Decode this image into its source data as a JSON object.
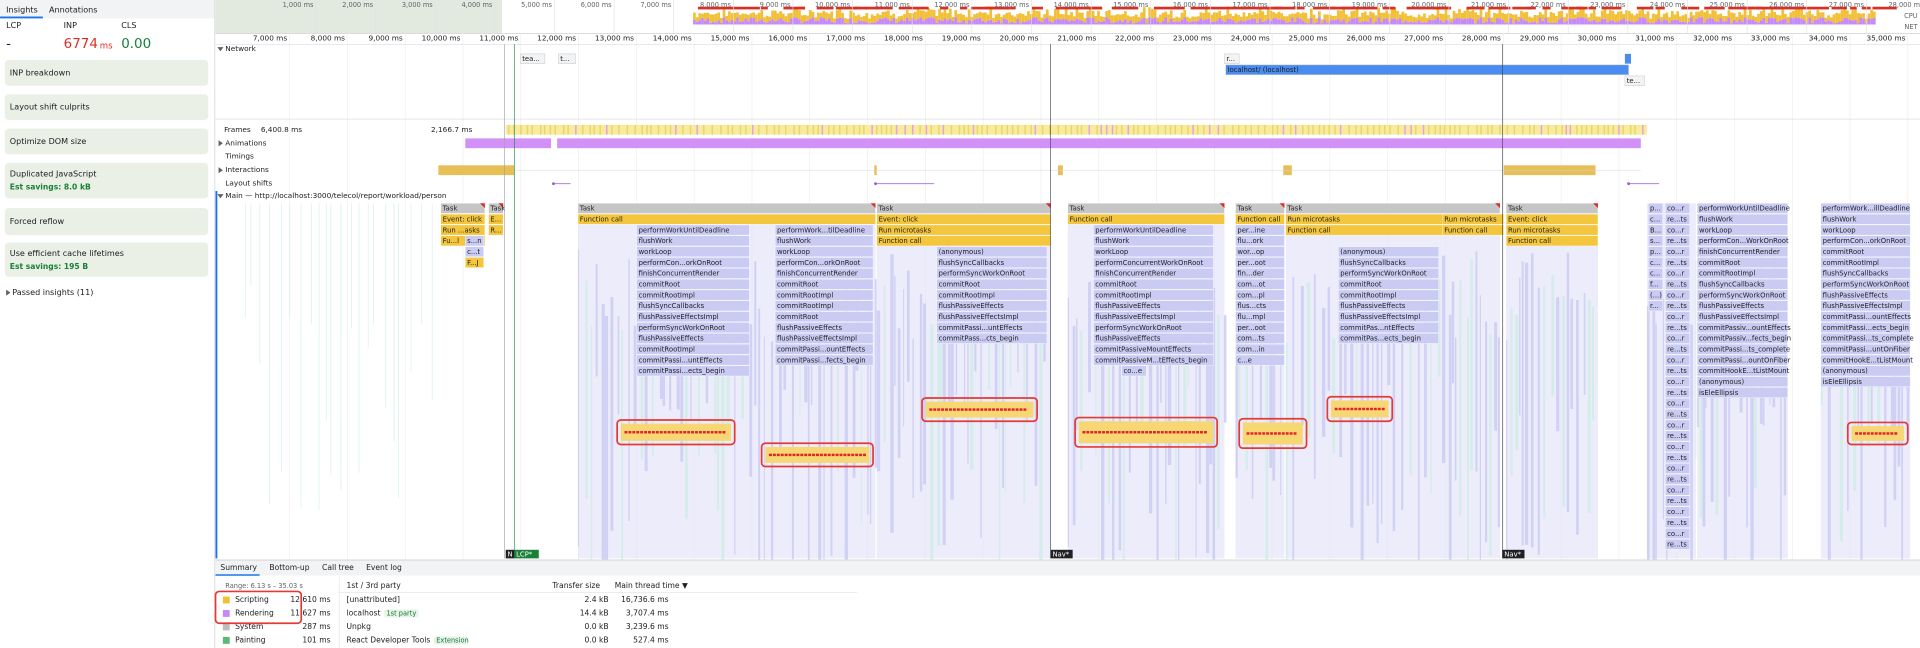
{
  "sidebar": {
    "tabs": [
      "Insights",
      "Annotations"
    ],
    "metrics": [
      {
        "label": "LCP",
        "value": "-"
      },
      {
        "label": "INP",
        "value": "6774",
        "unit": "ms"
      },
      {
        "label": "CLS",
        "value": "0.00"
      }
    ],
    "insights": [
      {
        "title": "INP breakdown"
      },
      {
        "title": "Layout shift culprits"
      },
      {
        "title": "Optimize DOM size"
      },
      {
        "title": "Duplicated JavaScript",
        "savings": "Est savings: 8.0 kB"
      },
      {
        "title": "Forced reflow"
      },
      {
        "title": "Use efficient cache lifetimes",
        "savings": "Est savings: 195 B"
      }
    ],
    "passed": "Passed insights (11)"
  },
  "overview": {
    "cpu": "CPU",
    "net": "NET",
    "ticks": [
      {
        "value": 1000,
        "label": "1,000 ms"
      },
      {
        "value": 2000,
        "label": "2,000 ms"
      },
      {
        "value": 3000,
        "label": "3,000 ms"
      },
      {
        "value": 4000,
        "label": "4,000 ms"
      },
      {
        "value": 5000,
        "label": "5,000 ms"
      },
      {
        "value": 6000,
        "label": "6,000 ms"
      },
      {
        "value": 7000,
        "label": "7,000 ms"
      },
      {
        "value": 8000,
        "label": "8,000 ms"
      },
      {
        "value": 9000,
        "label": "9,000 ms"
      },
      {
        "value": 10000,
        "label": "10,000 ms"
      },
      {
        "value": 11000,
        "label": "11,000 ms"
      },
      {
        "value": 12000,
        "label": "12,000 ms"
      },
      {
        "value": 13000,
        "label": "13,000 ms"
      },
      {
        "value": 14000,
        "label": "14,000 ms"
      },
      {
        "value": 15000,
        "label": "15,000 ms"
      },
      {
        "value": 16000,
        "label": "16,000 ms"
      },
      {
        "value": 17000,
        "label": "17,000 ms"
      },
      {
        "value": 18000,
        "label": "18,000 ms"
      },
      {
        "value": 19000,
        "label": "19,000 ms"
      },
      {
        "value": 20000,
        "label": "20,000 ms"
      },
      {
        "value": 21000,
        "label": "21,000 ms"
      },
      {
        "value": 22000,
        "label": "22,000 ms"
      },
      {
        "value": 23000,
        "label": "23,000 ms"
      },
      {
        "value": 24000,
        "label": "24,000 ms"
      },
      {
        "value": 25000,
        "label": "25,000 ms"
      },
      {
        "value": 26000,
        "label": "26,000 ms"
      },
      {
        "value": 27000,
        "label": "27,000 ms"
      },
      {
        "value": 28000,
        "label": "28,000 ms"
      },
      {
        "value": 29000,
        "label": "29,000 ms"
      },
      {
        "value": 30000,
        "label": "30,000 ms"
      },
      {
        "value": 31000,
        "label": "31,000 ms"
      },
      {
        "value": 32000,
        "label": "32,000 ms"
      },
      {
        "value": 33000,
        "label": "33,000 ms"
      },
      {
        "value": 34000,
        "label": "34,000 ms"
      },
      {
        "value": 35000,
        "label": "35,000 ms"
      }
    ]
  },
  "ruler": {
    "ticks": [
      {
        "value": 7000,
        "label": "7,000 ms"
      },
      {
        "value": 8000,
        "label": "8,000 ms"
      },
      {
        "value": 9000,
        "label": "9,000 ms"
      },
      {
        "value": 10000,
        "label": "10,000 ms"
      },
      {
        "value": 11000,
        "label": "11,000 ms"
      },
      {
        "value": 12000,
        "label": "12,000 ms"
      },
      {
        "value": 13000,
        "label": "13,000 ms"
      },
      {
        "value": 14000,
        "label": "14,000 ms"
      },
      {
        "value": 15000,
        "label": "15,000 ms"
      },
      {
        "value": 16000,
        "label": "16,000 ms"
      },
      {
        "value": 17000,
        "label": "17,000 ms"
      },
      {
        "value": 18000,
        "label": "18,000 ms"
      },
      {
        "value": 19000,
        "label": "19,000 ms"
      },
      {
        "value": 20000,
        "label": "20,000 ms"
      },
      {
        "value": 21000,
        "label": "21,000 ms"
      },
      {
        "value": 22000,
        "label": "22,000 ms"
      },
      {
        "value": 23000,
        "label": "23,000 ms"
      },
      {
        "value": 24000,
        "label": "24,000 ms"
      },
      {
        "value": 25000,
        "label": "25,000 ms"
      },
      {
        "value": 26000,
        "label": "26,000 ms"
      },
      {
        "value": 27000,
        "label": "27,000 ms"
      },
      {
        "value": 28000,
        "label": "28,000 ms"
      },
      {
        "value": 29000,
        "label": "29,000 ms"
      },
      {
        "value": 30000,
        "label": "30,000 ms"
      },
      {
        "value": 31000,
        "label": "31,000 ms"
      },
      {
        "value": 32000,
        "label": "32,000 ms"
      },
      {
        "value": 33000,
        "label": "33,000 ms"
      },
      {
        "value": 34000,
        "label": "34,000 ms"
      },
      {
        "value": 35000,
        "label": "35,000 ms"
      }
    ]
  },
  "network": {
    "label": "Network",
    "requests": [
      "tea...",
      "t...",
      "r...",
      "localhost/ (localhost)",
      "te..."
    ]
  },
  "tracks": {
    "frames": "Frames",
    "frame_times": [
      "6,400.8 ms",
      "2,166.7 ms"
    ],
    "animations": "Animations",
    "timings": "Timings",
    "interactions": "Interactions",
    "layout_shifts": "Layout shifts",
    "main": "Main — http://localhost:3000/telecol/report/workload/person"
  },
  "flame": {
    "columns": [
      [
        "Task",
        "Event: click",
        "Run ...asks",
        "Fu...l"
      ],
      [
        "s...n",
        "c...t",
        "F...J"
      ],
      [
        "Task",
        "E...",
        "R..."
      ],
      [
        "Task",
        "Function call"
      ],
      [
        "performWorkUntilDeadline",
        "flushWork",
        "workLoop",
        "performCon...orkOnRoot",
        "finishConcurrentRender",
        "commitRoot",
        "commitRootImpl",
        "flushSyncCallbacks",
        "flushPassiveEffectsImpl",
        "performSyncWorkOnRoot",
        "flushPassiveEffects",
        "commitRootImpl",
        "commitPassi...untEffects",
        "commitPassi...ects_begin"
      ],
      [
        "performWork...tilDeadline",
        "flushWork",
        "workLoop",
        "performCon...orkOnRoot",
        "finishConcurrentRender",
        "commitRoot",
        "commitRootImpl",
        "commitRootImpl",
        "commitRoot",
        "flushPassiveEffects",
        "flushPassiveEffectsImpl",
        "commitPassi...ountEffects",
        "commitPassi...fects_begin"
      ],
      [
        "Task",
        "Event: click",
        "Run microtasks",
        "Function call"
      ],
      [
        "(anonymous)",
        "flushSyncCallbacks",
        "performSyncWorkOnRoot",
        "commitRoot",
        "commitRootImpl",
        "flushPassiveEffects",
        "flushPassiveEffectsImpl",
        "commitPassi...untEffects",
        "commitPass...cts_begin"
      ],
      [
        "Task",
        "Function call"
      ],
      [
        "performWorkUntilDeadline",
        "flushWork",
        "workLoop",
        "performConcurrentWorkOnRoot",
        "finishConcurrentRender",
        "commitRoot",
        "commitRootImpl",
        "flushPassiveEffects",
        "flushPassiveEffectsImpl",
        "performSyncWorkOnRoot",
        "flushPassiveEffects",
        "commitPassiveMountEffects",
        "commitPassiveM...tEffects_begin"
      ],
      [
        "co...e"
      ],
      [
        "Task",
        "Function call",
        "per...ine",
        "flu...ork",
        "wor...op",
        "per...oot",
        "fin...der",
        "com...ot",
        "com...pl",
        "flus...cts",
        "flu...mpl",
        "per...oot",
        "com...ts",
        "com...in",
        "c...e"
      ],
      [
        "Task",
        "Run microtasks",
        "Function call"
      ],
      [
        "(anonymous)",
        "flushSyncCallbacks",
        "performSyncWorkOnRoot",
        "commitRoot",
        "commitRootImpl",
        "flushPassiveEffects",
        "flushPassiveEffectsImpl",
        "commitPas...ntEffects",
        "commitPas...ects_begin"
      ],
      [
        "Run microtasks",
        "Function call"
      ],
      [
        "Task",
        "Event: click",
        "Run microtasks",
        "Function call"
      ],
      [
        "p...",
        "c...",
        "B...",
        "s...",
        "p...",
        "c...",
        "c...",
        "f...",
        "(...)",
        "r..."
      ],
      [
        "co...r",
        "re...ts",
        "co...r",
        "re...ts",
        "co...r",
        "re...ts",
        "co...r",
        "re...ts",
        "co...r",
        "re...ts",
        "co...r",
        "re...ts",
        "co...r",
        "re...ts",
        "co...r",
        "re...ts",
        "co...r",
        "re...ts",
        "co...r",
        "re...ts",
        "co...r",
        "re...ts",
        "co...r",
        "re...ts",
        "co...r",
        "re...ts",
        "co...r",
        "re...ts",
        "co...r",
        "re...ts",
        "co...r",
        "re...ts"
      ],
      [
        "performWorkUntilDeadline",
        "flushWork",
        "workLoop",
        "performCon...WorkOnRoot",
        "finishConcurrentRender",
        "commitRoot",
        "commitRootImpl",
        "flushSyncCallbacks",
        "performSyncWorkOnRoot",
        "flushPassiveEffects",
        "flushPassiveEffectsImpl",
        "commitPassiv...ountEffects",
        "commitPassiv...fects_begin",
        "commitPassi...ts_complete",
        "commitPassi...ountOnFiber",
        "commitHookE...tListMount",
        "(anonymous)",
        "isEleEllipsis"
      ],
      [
        "performWork...illDeadline",
        "flushWork",
        "workLoop",
        "performCon...orkOnRoot",
        "commitRoot",
        "commitRootImpl",
        "flushSyncCallbacks",
        "performSyncWorkOnRoot",
        "flushPassiveEffects",
        "flushPassiveEffectsImpl",
        "commitPassi...ountEffects",
        "commitPassi...ects_begin",
        "commitPassi...ts_complete",
        "commitPassi...untOnFiber",
        "commitHookE...tListMount",
        "(anonymous)",
        "isEleEllipsis"
      ]
    ]
  },
  "markers": [
    "N",
    "LCP*",
    "Nav*",
    "Nav*"
  ],
  "summary": {
    "tabs": [
      "Summary",
      "Bottom-up",
      "Call tree",
      "Event log"
    ],
    "range": "Range: 6.13 s – 35.03 s",
    "legend": [
      {
        "name": "Scripting",
        "color": "#f2c037",
        "time": "12,610 ms"
      },
      {
        "name": "Rendering",
        "color": "#c58af9",
        "time": "11,627 ms"
      },
      {
        "name": "System",
        "color": "#bdbdbd",
        "time": "287 ms"
      },
      {
        "name": "Painting",
        "color": "#5bb974",
        "time": "101 ms"
      }
    ],
    "table": {
      "headers": [
        "1st / 3rd party",
        "Transfer size",
        "Main thread time ▼"
      ],
      "rows": [
        {
          "name": "[unattributed]",
          "size": "2.4 kB",
          "time": "16,736.6 ms"
        },
        {
          "name": "localhost",
          "badge": "1st party",
          "size": "14.4 kB",
          "time": "3,707.4 ms"
        },
        {
          "name": "Unpkg",
          "size": "0.0 kB",
          "time": "3,239.6 ms"
        },
        {
          "name": "React Developer Tools",
          "badge": "Extension",
          "size": "0.0 kB",
          "time": "527.4 ms"
        }
      ]
    }
  }
}
